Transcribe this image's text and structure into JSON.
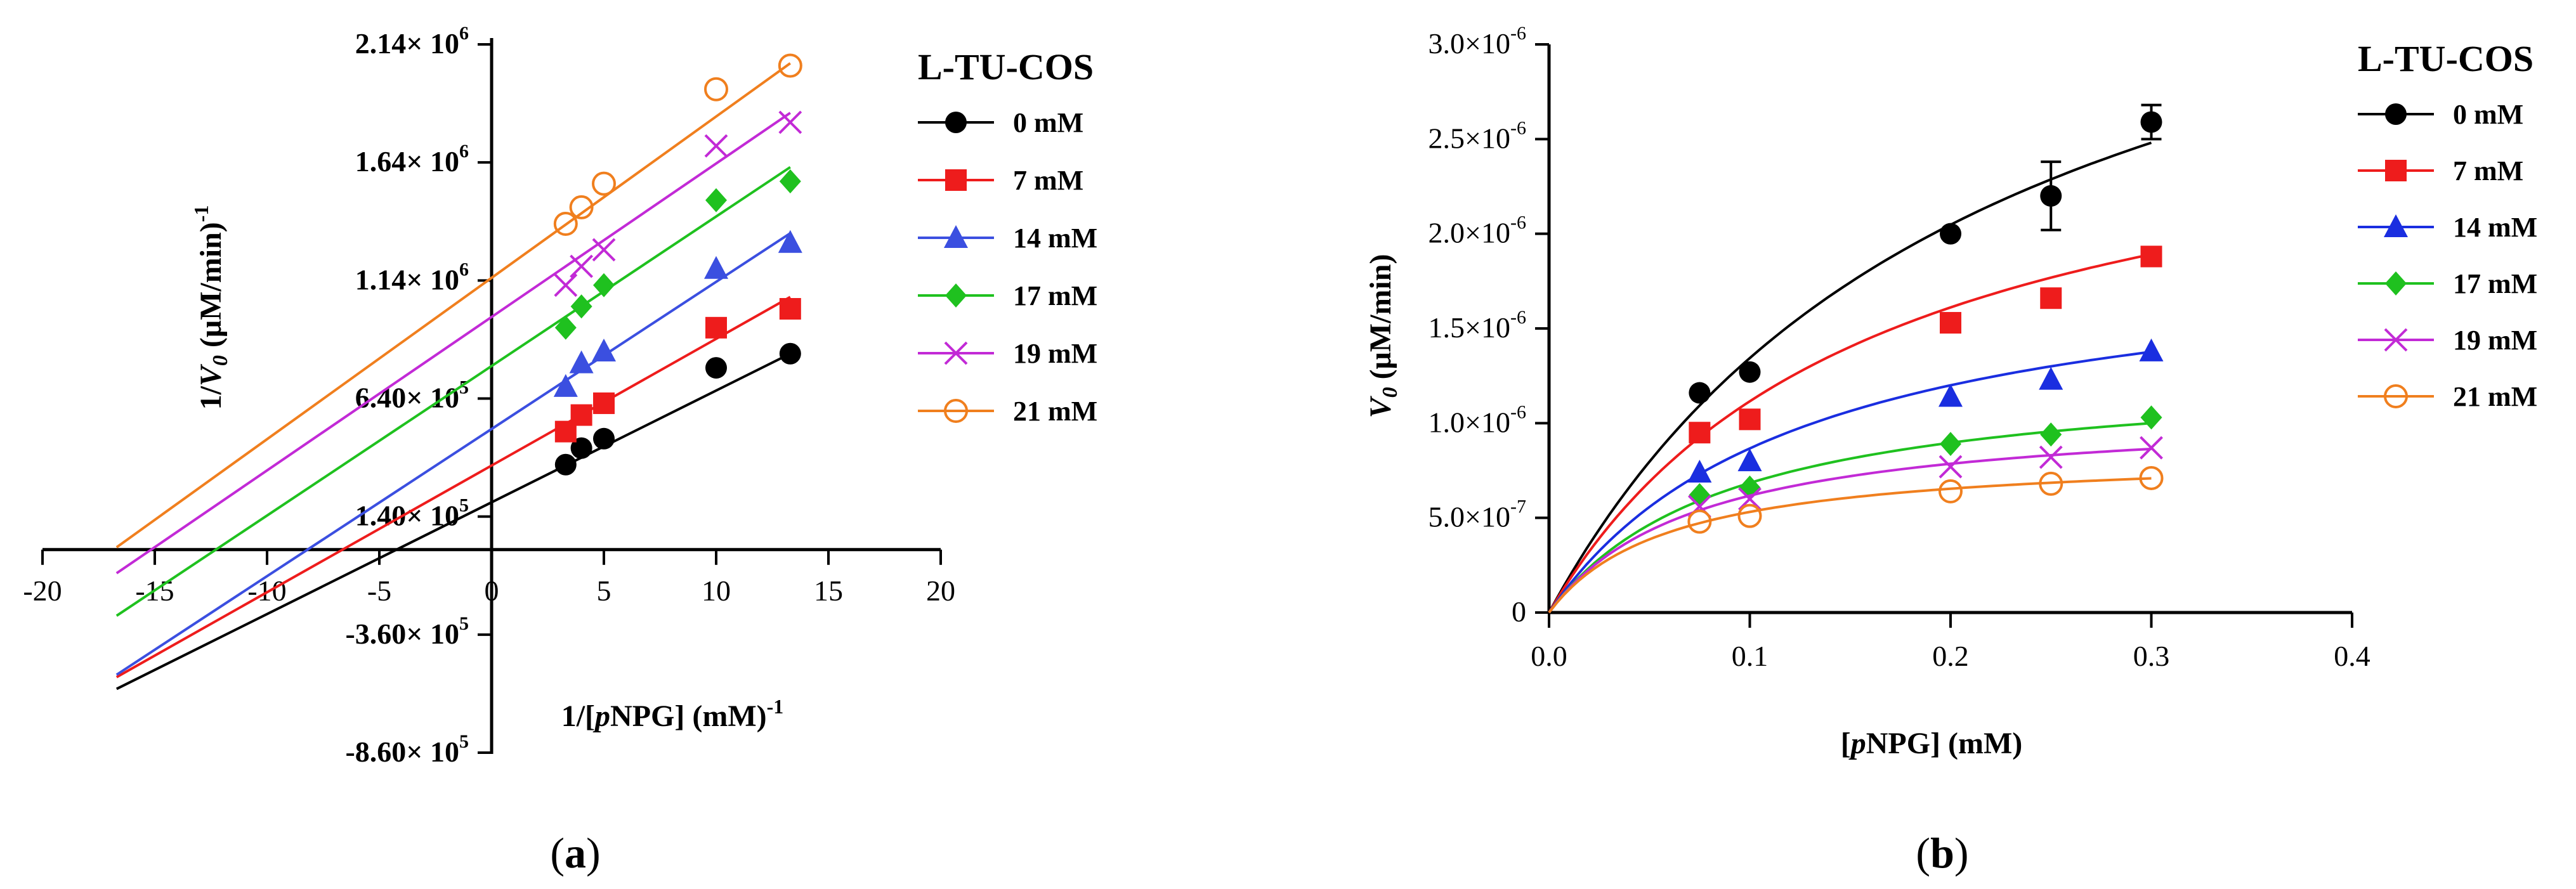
{
  "chart_data": [
    {
      "type": "line",
      "panel_label": "(a)",
      "title": "",
      "xlabel": "1/[pNPG] (mM)-1",
      "xlabel_parts": {
        "pre": "1/[",
        "italic": "p",
        "post": "NPG] (mM)",
        "sup": "-1"
      },
      "ylabel": "1/V0 (μM/min)-1",
      "ylabel_parts": {
        "pre": "1/",
        "italic": "V",
        "sub": "0",
        "post": " (μM/min)",
        "sup": "-1"
      },
      "xlim": [
        -20,
        20
      ],
      "ylim": [
        -860000,
        2140000
      ],
      "x_ticks": [
        "-20",
        "-15",
        "-10",
        "-5",
        "0",
        "5",
        "10",
        "15",
        "20"
      ],
      "y_ticks": [
        {
          "mantissa": "2.14",
          "exp": "6",
          "value": 2140000
        },
        {
          "mantissa": "1.64",
          "exp": "6",
          "value": 1640000
        },
        {
          "mantissa": "1.14",
          "exp": "6",
          "value": 1140000
        },
        {
          "mantissa": "6.40",
          "exp": "5",
          "value": 640000
        },
        {
          "mantissa": "1.40",
          "exp": "5",
          "value": 140000
        },
        {
          "mantissa": "-3.60",
          "exp": "5",
          "value": -360000
        },
        {
          "mantissa": "-8.60",
          "exp": "5",
          "value": -860000
        }
      ],
      "times_sign": "× 10",
      "legend": {
        "title": "L-TU-COS",
        "position": "right"
      },
      "series": [
        {
          "name": "0 mM",
          "color": "#000000",
          "marker": "circle",
          "points": [
            [
              3.3,
              360000
            ],
            [
              4,
              430000
            ],
            [
              5,
              470000
            ],
            [
              10,
              770000
            ],
            [
              13.3,
              830000
            ]
          ],
          "fit": [
            [
              -16.7,
              -590000
            ],
            [
              13.3,
              830000
            ]
          ]
        },
        {
          "name": "7 mM",
          "color": "#ee1c1c",
          "marker": "square",
          "points": [
            [
              3.3,
              500000
            ],
            [
              4,
              570000
            ],
            [
              5,
              620000
            ],
            [
              10,
              940000
            ],
            [
              13.3,
              1020000
            ]
          ],
          "fit": [
            [
              -16.7,
              -540000
            ],
            [
              13.3,
              1070000
            ]
          ]
        },
        {
          "name": "14 mM",
          "color": "#3b4fe0",
          "marker": "triangle",
          "points": [
            [
              3.3,
              690000
            ],
            [
              4,
              790000
            ],
            [
              5,
              840000
            ],
            [
              10,
              1190000
            ],
            [
              13.3,
              1300000
            ]
          ],
          "fit": [
            [
              -16.7,
              -530000
            ],
            [
              13.3,
              1340000
            ]
          ]
        },
        {
          "name": "17 mM",
          "color": "#1fc11f",
          "marker": "diamond",
          "points": [
            [
              3.3,
              940000
            ],
            [
              4,
              1030000
            ],
            [
              5,
              1120000
            ],
            [
              10,
              1480000
            ],
            [
              13.3,
              1560000
            ]
          ],
          "fit": [
            [
              -16.7,
              -280000
            ],
            [
              13.3,
              1620000
            ]
          ]
        },
        {
          "name": "19 mM",
          "color": "#c22ad6",
          "marker": "x",
          "points": [
            [
              3.3,
              1120000
            ],
            [
              4,
              1200000
            ],
            [
              5,
              1270000
            ],
            [
              10,
              1710000
            ],
            [
              13.3,
              1810000
            ]
          ],
          "fit": [
            [
              -16.7,
              -100000
            ],
            [
              13.3,
              1850000
            ]
          ]
        },
        {
          "name": "21 mM",
          "color": "#f07f1e",
          "marker": "open-circle",
          "points": [
            [
              3.3,
              1380000
            ],
            [
              4,
              1450000
            ],
            [
              5,
              1550000
            ],
            [
              10,
              1950000
            ],
            [
              13.3,
              2050000
            ]
          ],
          "fit": [
            [
              -16.7,
              10000
            ],
            [
              13.3,
              2060000
            ]
          ]
        }
      ]
    },
    {
      "type": "line",
      "panel_label": "(b)",
      "title": "",
      "xlabel": "[pNPG] (mM)",
      "xlabel_parts": {
        "pre": "[",
        "italic": "p",
        "post": "NPG] (mM)",
        "sup": ""
      },
      "ylabel": "V0 (μM/min)",
      "ylabel_parts": {
        "pre": "",
        "italic": "V",
        "sub": "0",
        "post": " (μM/min)",
        "sup": ""
      },
      "xlim": [
        0,
        0.4
      ],
      "ylim": [
        0,
        3e-06
      ],
      "x_ticks": [
        "0.0",
        "0.1",
        "0.2",
        "0.3",
        "0.4"
      ],
      "y_ticks": [
        {
          "mantissa": "3.0",
          "exp": "-6",
          "value": 3e-06
        },
        {
          "mantissa": "2.5",
          "exp": "-6",
          "value": 2.5e-06
        },
        {
          "mantissa": "2.0",
          "exp": "-6",
          "value": 2e-06
        },
        {
          "mantissa": "1.5",
          "exp": "-6",
          "value": 1.5e-06
        },
        {
          "mantissa": "1.0",
          "exp": "-6",
          "value": 1e-06
        },
        {
          "mantissa": "5.0",
          "exp": "-7",
          "value": 5e-07
        },
        {
          "mantissa": "0",
          "exp": "",
          "value": 0
        }
      ],
      "times_sign": "×10",
      "legend": {
        "title": "L-TU-COS",
        "position": "right"
      },
      "series": [
        {
          "name": "0 mM",
          "color": "#000000",
          "marker": "circle",
          "points": [
            [
              0.075,
              1.16e-06
            ],
            [
              0.1,
              1.27e-06
            ],
            [
              0.2,
              2e-06
            ],
            [
              0.25,
              2.2e-06
            ],
            [
              0.3,
              2.59e-06
            ]
          ],
          "errors": [
            0,
            0,
            0,
            1.8e-07,
            9e-08
          ],
          "vmax": 4.3e-06,
          "km": 0.22
        },
        {
          "name": "7 mM",
          "color": "#ee1c1c",
          "marker": "square",
          "points": [
            [
              0.075,
              9.5e-07
            ],
            [
              0.1,
              1.02e-06
            ],
            [
              0.2,
              1.53e-06
            ],
            [
              0.25,
              1.66e-06
            ],
            [
              0.3,
              1.88e-06
            ]
          ],
          "errors": [
            0,
            0,
            0,
            0,
            0
          ],
          "vmax": 2.9e-06,
          "km": 0.16
        },
        {
          "name": "14 mM",
          "color": "#1a2ee0",
          "marker": "triangle",
          "points": [
            [
              0.075,
              7.4e-07
            ],
            [
              0.1,
              8e-07
            ],
            [
              0.2,
              1.14e-06
            ],
            [
              0.25,
              1.23e-06
            ],
            [
              0.3,
              1.38e-06
            ]
          ],
          "errors": [
            0,
            0,
            0,
            0,
            0
          ],
          "vmax": 1.95e-06,
          "km": 0.125
        },
        {
          "name": "17 mM",
          "color": "#1fc11f",
          "marker": "diamond",
          "points": [
            [
              0.075,
              6.2e-07
            ],
            [
              0.1,
              6.6e-07
            ],
            [
              0.2,
              8.9e-07
            ],
            [
              0.25,
              9.4e-07
            ],
            [
              0.3,
              1.03e-06
            ]
          ],
          "errors": [
            0,
            0,
            0,
            0,
            0
          ],
          "vmax": 1.3e-06,
          "km": 0.09
        },
        {
          "name": "19 mM",
          "color": "#c22ad6",
          "marker": "x",
          "points": [
            [
              0.075,
              5.6e-07
            ],
            [
              0.1,
              6e-07
            ],
            [
              0.2,
              7.7e-07
            ],
            [
              0.25,
              8.2e-07
            ],
            [
              0.3,
              8.7e-07
            ]
          ],
          "errors": [
            0,
            0,
            0,
            0,
            0
          ],
          "vmax": 1.08e-06,
          "km": 0.075
        },
        {
          "name": "21 mM",
          "color": "#f07f1e",
          "marker": "open-circle",
          "points": [
            [
              0.075,
              4.8e-07
            ],
            [
              0.1,
              5.1e-07
            ],
            [
              0.2,
              6.4e-07
            ],
            [
              0.25,
              6.8e-07
            ],
            [
              0.3,
              7.1e-07
            ]
          ],
          "errors": [
            0,
            0,
            0,
            0,
            0
          ],
          "vmax": 8.5e-07,
          "km": 0.06
        }
      ]
    }
  ]
}
